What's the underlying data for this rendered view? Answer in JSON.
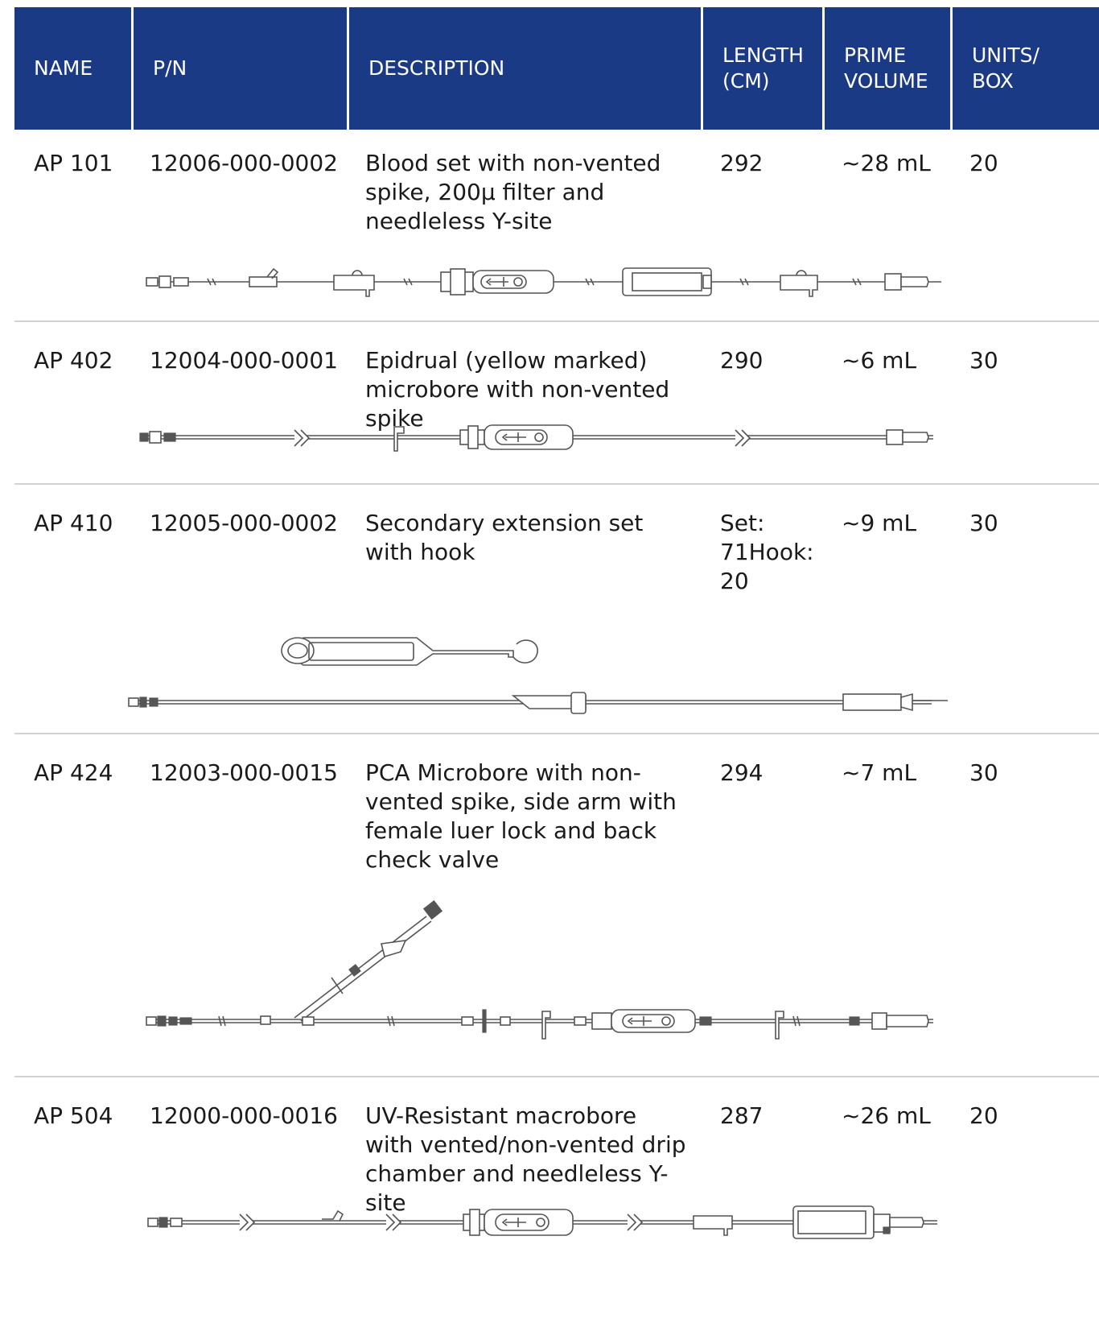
{
  "header": {
    "name": "NAME",
    "pn": "P/N",
    "description": "DESCRIPTION",
    "length": "LENGTH\n(CM)",
    "prime_volume": "PRIME\nVOLUME",
    "units_box": "UNITS/\nBOX"
  },
  "rows": [
    {
      "name": "AP 101",
      "pn": "12006-000-0002",
      "description": "Blood set with non-vented\nspike, 200µ filter and\nneedleless Y-site",
      "length": "292",
      "prime_volume": "~28 mL",
      "units_box": "20"
    },
    {
      "name": "AP 402",
      "pn": "12004-000-0001",
      "description": "Epidrual (yellow marked)\nmicrobore with non-vented spike",
      "length": "290",
      "prime_volume": "~6 mL",
      "units_box": "30"
    },
    {
      "name": "AP 410",
      "pn": "12005-000-0002",
      "description": "Secondary extension set\nwith hook",
      "length": "Set:\n71Hook:\n20",
      "prime_volume": "~9 mL",
      "units_box": "30"
    },
    {
      "name": "AP 424",
      "pn": "12003-000-0015",
      "description": "PCA Microbore with non-\nvented spike, side arm with\nfemale luer lock and back\ncheck valve",
      "length": "294",
      "prime_volume": "~7 mL",
      "units_box": "30"
    },
    {
      "name": "AP 504",
      "pn": "12000-000-0016",
      "description": "UV-Resistant macrobore\nwith vented/non-vented drip\nchamber and needleless Y-site",
      "length": "287",
      "prime_volume": "~26 mL",
      "units_box": "20"
    }
  ],
  "colors": {
    "header_bg": "#1b3a86",
    "header_text": "#ffffff",
    "separator": "#d2d2d2"
  },
  "icons": [
    "iv-set-drawing-icon",
    "hook-drawing-icon"
  ]
}
